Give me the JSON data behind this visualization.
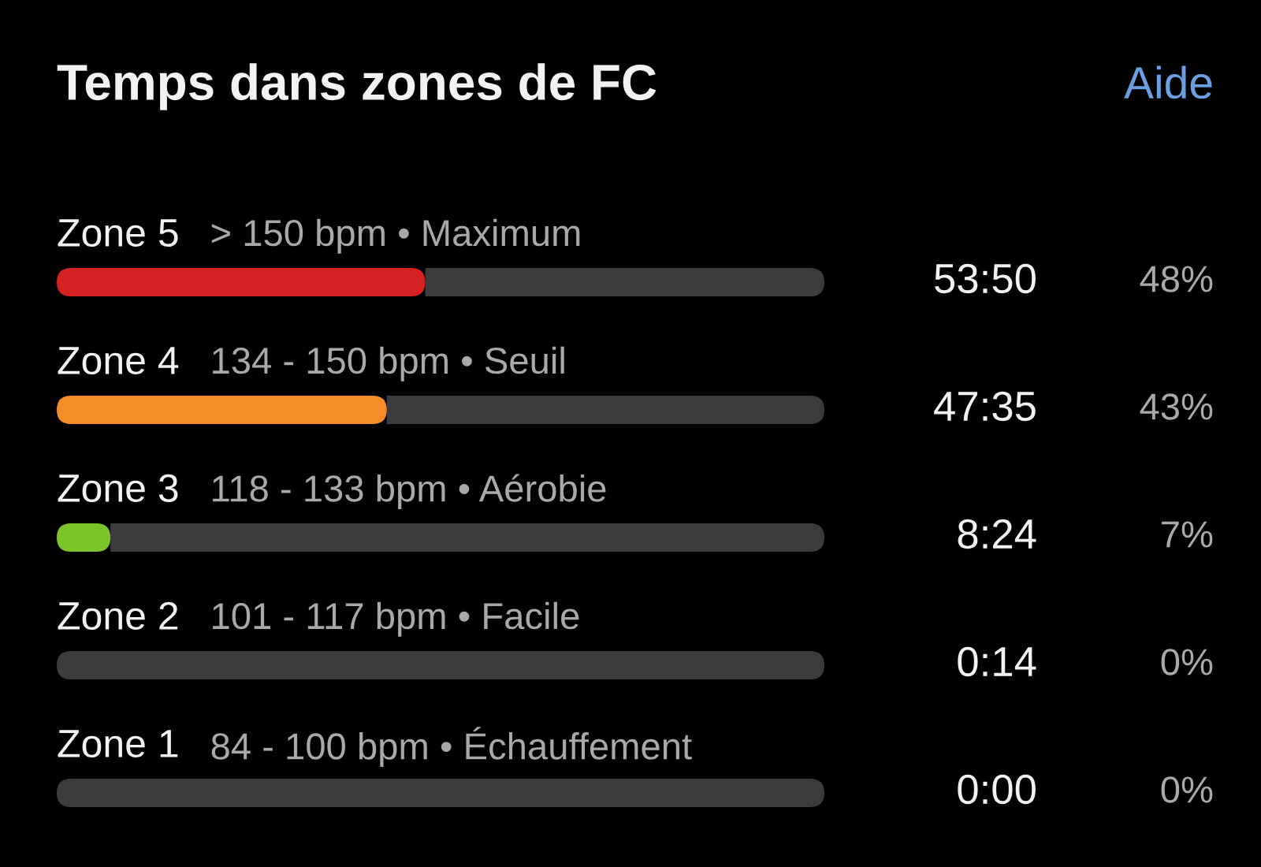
{
  "chart_data": {
    "type": "bar",
    "orientation": "horizontal",
    "stacked": true,
    "title": "Temps dans zones de FC",
    "categories": [
      "Zone 5",
      "Zone 4",
      "Zone 3",
      "Zone 2",
      "Zone 1"
    ],
    "series": [
      {
        "values": [
          48,
          43,
          7,
          0,
          0
        ],
        "colors": [
          "#d42121",
          "#f68b29",
          "#7dc42b",
          null,
          null
        ],
        "value_labels": [
          "48%",
          "43%",
          "7%",
          "0%",
          "0%"
        ]
      },
      {
        "color": "#3c3c3e",
        "values": [
          52,
          57,
          93,
          100,
          100
        ]
      }
    ],
    "xlim": [
      0,
      100
    ],
    "annotations": [
      "> 150 bpm • Maximum",
      "134 - 150 bpm • Seuil",
      "118 - 133 bpm • Aérobie",
      "101 - 117 bpm • Facile",
      "84 - 100 bpm • Échauffement",
      "53:50",
      "47:35",
      "8:24",
      "0:14",
      "0:00",
      "Aide"
    ]
  }
}
